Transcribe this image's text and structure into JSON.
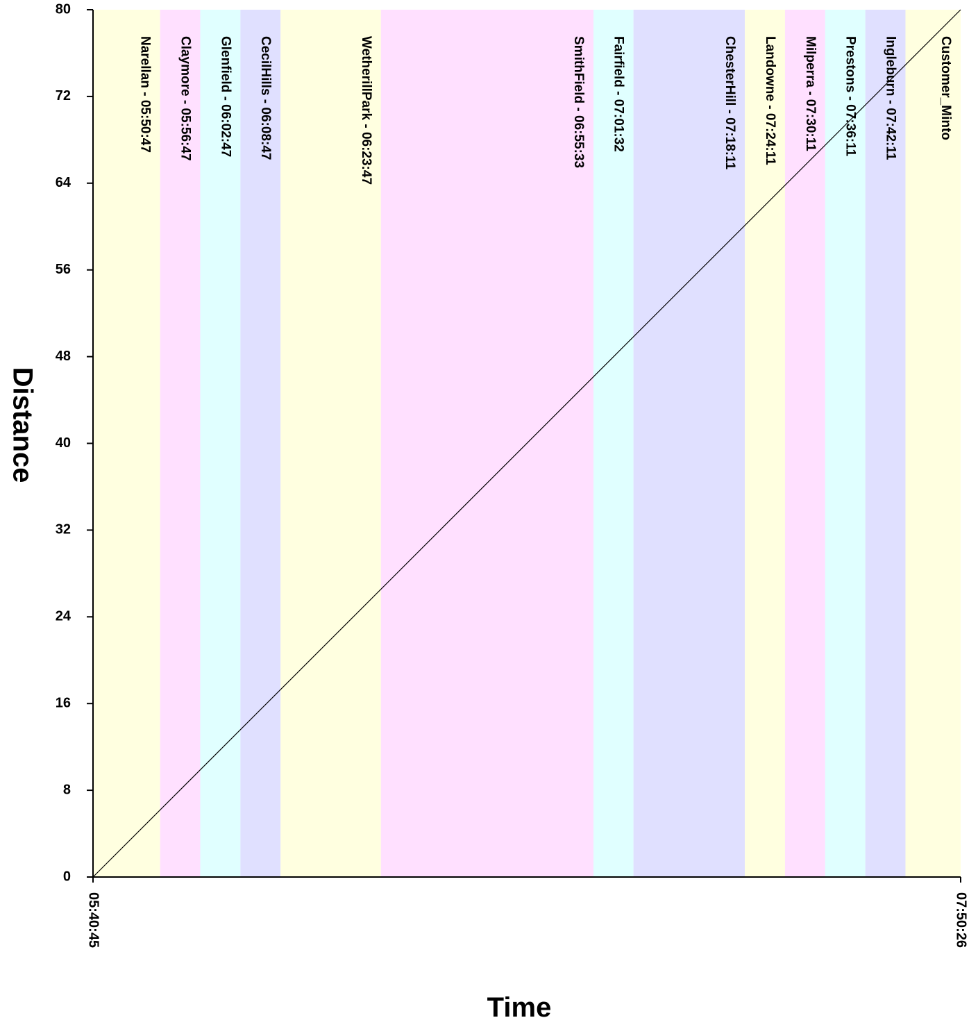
{
  "chart_data": {
    "type": "line",
    "title": "",
    "xlabel": "Time",
    "ylabel": "Distance",
    "x_range": [
      "05:40:45",
      "07:50:26"
    ],
    "x_tick_labels": [
      "05:40:45",
      "07:50:26"
    ],
    "ylim": [
      0,
      80
    ],
    "y_ticks": [
      0,
      8,
      16,
      24,
      32,
      40,
      48,
      56,
      64,
      72,
      80
    ],
    "grid": false,
    "series": [
      {
        "x": [
          "05:40:45",
          "07:50:26"
        ],
        "y": [
          0,
          80
        ],
        "color": "#000000"
      }
    ],
    "bands": [
      {
        "label": "Narellan - 05:50:47",
        "start": "05:40:45",
        "end": "05:50:47",
        "color": "#ffffe0"
      },
      {
        "label": "Claymore - 05:56:47",
        "start": "05:50:47",
        "end": "05:56:47",
        "color": "#ffe0ff"
      },
      {
        "label": "Glenfield - 06:02:47",
        "start": "05:56:47",
        "end": "06:02:47",
        "color": "#e0ffff"
      },
      {
        "label": "CecilHills - 06:08:47",
        "start": "06:02:47",
        "end": "06:08:47",
        "color": "#e0e0ff"
      },
      {
        "label": "WetherillPark - 06:23:47",
        "start": "06:08:47",
        "end": "06:23:47",
        "color": "#ffffe0"
      },
      {
        "label": "SmithField - 06:55:33",
        "start": "06:23:47",
        "end": "06:55:33",
        "color": "#ffe0ff"
      },
      {
        "label": "Fairfield - 07:01:32",
        "start": "06:55:33",
        "end": "07:01:32",
        "color": "#e0ffff"
      },
      {
        "label": "ChesterHill - 07:18:11",
        "start": "07:01:32",
        "end": "07:18:11",
        "color": "#e0e0ff"
      },
      {
        "label": "Landowne - 07:24:11",
        "start": "07:18:11",
        "end": "07:24:11",
        "color": "#ffffe0"
      },
      {
        "label": "Milperra - 07:30:11",
        "start": "07:24:11",
        "end": "07:30:11",
        "color": "#ffe0ff"
      },
      {
        "label": "Prestons - 07:36:11",
        "start": "07:30:11",
        "end": "07:36:11",
        "color": "#e0ffff"
      },
      {
        "label": "Ingleburn - 07:42:11",
        "start": "07:36:11",
        "end": "07:42:11",
        "color": "#e0e0ff"
      },
      {
        "label": "Customer_Minto",
        "start": "07:42:11",
        "end": "07:50:26",
        "color": "#ffffe0"
      }
    ]
  }
}
